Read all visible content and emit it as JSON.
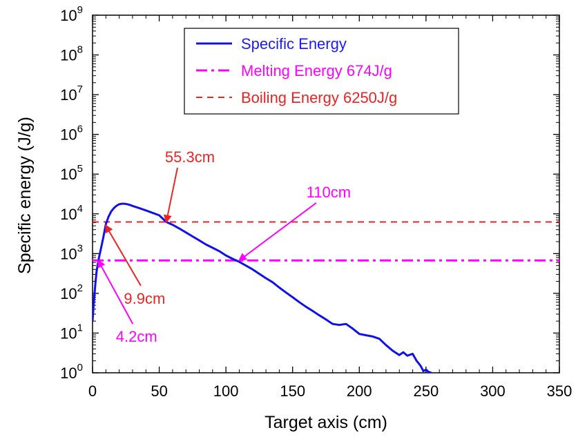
{
  "chart_data": {
    "type": "line",
    "title": "",
    "xlabel": "Target axis (cm)",
    "ylabel": "Specific energy (J/g)",
    "xlim": [
      0,
      350
    ],
    "ylim": [
      1,
      1000000000
    ],
    "yscale": "log",
    "grid": false,
    "legend_position": "top-center",
    "x_ticks": [
      0,
      50,
      100,
      150,
      200,
      250,
      300,
      350
    ],
    "x_tick_labels": [
      "0",
      "50",
      "100",
      "150",
      "200",
      "250",
      "300",
      "350"
    ],
    "y_ticks": [
      1,
      10,
      100,
      1000,
      10000,
      100000,
      1000000,
      10000000,
      100000000,
      1000000000
    ],
    "y_tick_labels": [
      {
        "base": "10",
        "exp": "0"
      },
      {
        "base": "10",
        "exp": "1"
      },
      {
        "base": "10",
        "exp": "2"
      },
      {
        "base": "10",
        "exp": "3"
      },
      {
        "base": "10",
        "exp": "4"
      },
      {
        "base": "10",
        "exp": "5"
      },
      {
        "base": "10",
        "exp": "6"
      },
      {
        "base": "10",
        "exp": "7"
      },
      {
        "base": "10",
        "exp": "8"
      },
      {
        "base": "10",
        "exp": "9"
      }
    ],
    "series": [
      {
        "name": "Specific Energy",
        "color": "#1010ee",
        "style": "solid",
        "x": [
          0,
          1,
          2,
          3,
          4,
          5,
          6,
          8,
          10,
          12,
          14,
          16,
          18,
          20,
          22,
          24,
          26,
          28,
          30,
          35,
          40,
          45,
          50,
          55.3,
          60,
          65,
          70,
          75,
          80,
          85,
          90,
          95,
          100,
          105,
          110,
          115,
          120,
          125,
          130,
          135,
          140,
          145,
          150,
          155,
          160,
          165,
          170,
          175,
          180,
          185,
          190,
          195,
          200,
          205,
          210,
          215,
          220,
          225,
          230,
          233,
          236,
          240,
          243,
          246,
          248,
          250,
          252,
          254
        ],
        "y": [
          20,
          60,
          160,
          350,
          560,
          850,
          1200,
          2500,
          5500,
          8500,
          11500,
          14000,
          16000,
          17500,
          18000,
          18000,
          17500,
          16800,
          15800,
          14000,
          12200,
          10600,
          9200,
          6250,
          5300,
          4300,
          3400,
          2700,
          2150,
          1700,
          1400,
          1150,
          900,
          740,
          620,
          500,
          400,
          310,
          240,
          190,
          140,
          105,
          80,
          60,
          46,
          36,
          28,
          22,
          17,
          16,
          17,
          13,
          9.5,
          8.8,
          8.2,
          7.2,
          5,
          3.6,
          2.8,
          3.3,
          2.7,
          3,
          2,
          1.5,
          1.1,
          1.2,
          1.05,
          1
        ],
        "label_color": "#1a1aff"
      },
      {
        "name": "Melting Energy 674J/g",
        "color": "#ff00ff",
        "style": "dashdot",
        "value": 674
      },
      {
        "name": "Boiling Energy 6250J/g",
        "color": "#ee2222",
        "style": "dashed",
        "value": 6250
      }
    ],
    "annotations": [
      {
        "text": "55.3cm",
        "color": "#ee2222",
        "point": [
          55.3,
          6250
        ],
        "label_at": [
          73,
          200000
        ]
      },
      {
        "text": "110cm",
        "color": "#ff00ff",
        "point": [
          110,
          674
        ],
        "label_at": [
          177,
          26000
        ]
      },
      {
        "text": "9.9cm",
        "color": "#ee2222",
        "point": [
          9.9,
          5100
        ],
        "label_at": [
          39,
          55
        ]
      },
      {
        "text": "4.2cm",
        "color": "#ff00ff",
        "point": [
          4.2,
          674
        ],
        "label_at": [
          33,
          6
        ]
      }
    ]
  }
}
